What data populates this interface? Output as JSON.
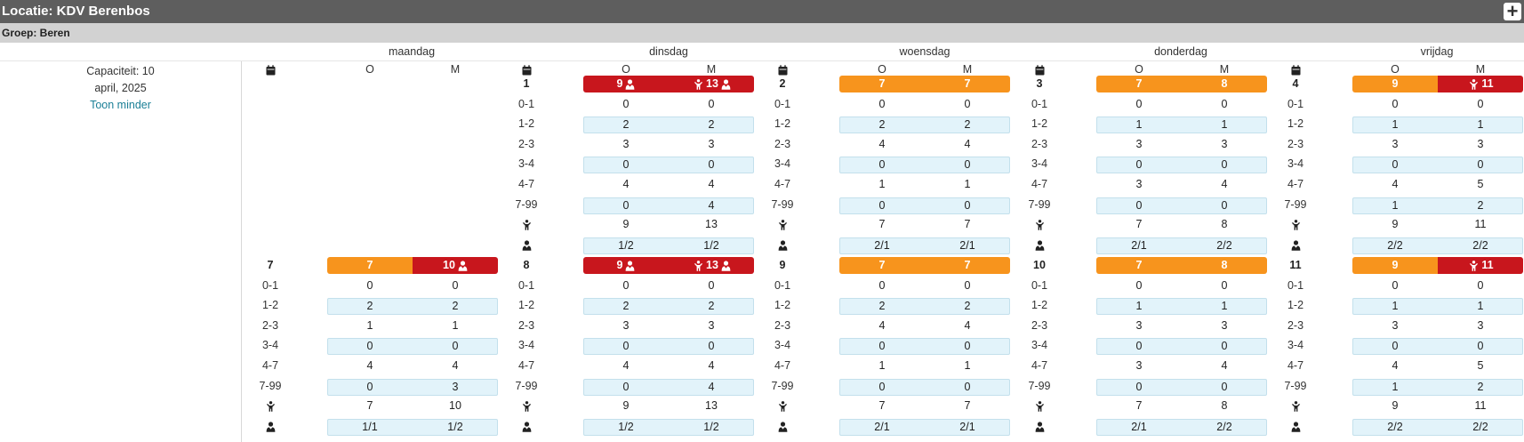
{
  "header": {
    "title": "Locatie: KDV Berenbos",
    "add_label": "+"
  },
  "group": {
    "title": "Groep: Beren"
  },
  "days": [
    "maandag",
    "dinsdag",
    "woensdag",
    "donderdag",
    "vrijdag"
  ],
  "info": {
    "capacity": "Capaciteit: 10",
    "month": "april, 2025",
    "toggle": "Toon minder"
  },
  "shift_labels": {
    "o": "O",
    "m": "M"
  },
  "age_rows": [
    "0-1",
    "1-2",
    "2-3",
    "3-4",
    "4-7",
    "7-99"
  ],
  "colors": {
    "orange": "#f7941d",
    "red": "#c8161d",
    "shade": "#e2f3fa",
    "link": "#1a7f96"
  },
  "weeks": [
    {
      "cells": [
        null,
        {
          "day": "1",
          "o": {
            "total": "9",
            "color": "red",
            "icons": [
              "staff"
            ]
          },
          "m": {
            "total": "13",
            "color": "red",
            "icons": [
              "child",
              "staff"
            ]
          },
          "ages": [
            [
              "0",
              "0"
            ],
            [
              "2",
              "2"
            ],
            [
              "3",
              "3"
            ],
            [
              "0",
              "0"
            ],
            [
              "4",
              "4"
            ],
            [
              "0",
              "4"
            ]
          ],
          "children": [
            "9",
            "13"
          ],
          "staff": [
            "1/2",
            "1/2"
          ]
        },
        {
          "day": "2",
          "o": {
            "total": "7",
            "color": "orange",
            "icons": []
          },
          "m": {
            "total": "7",
            "color": "orange",
            "icons": []
          },
          "ages": [
            [
              "0",
              "0"
            ],
            [
              "2",
              "2"
            ],
            [
              "4",
              "4"
            ],
            [
              "0",
              "0"
            ],
            [
              "1",
              "1"
            ],
            [
              "0",
              "0"
            ]
          ],
          "children": [
            "7",
            "7"
          ],
          "staff": [
            "2/1",
            "2/1"
          ]
        },
        {
          "day": "3",
          "o": {
            "total": "7",
            "color": "orange",
            "icons": []
          },
          "m": {
            "total": "8",
            "color": "orange",
            "icons": []
          },
          "ages": [
            [
              "0",
              "0"
            ],
            [
              "1",
              "1"
            ],
            [
              "3",
              "3"
            ],
            [
              "0",
              "0"
            ],
            [
              "3",
              "4"
            ],
            [
              "0",
              "0"
            ]
          ],
          "children": [
            "7",
            "8"
          ],
          "staff": [
            "2/1",
            "2/2"
          ]
        },
        {
          "day": "4",
          "o": {
            "total": "9",
            "color": "orange",
            "icons": []
          },
          "m": {
            "total": "11",
            "color": "red",
            "icons": [
              "child"
            ]
          },
          "ages": [
            [
              "0",
              "0"
            ],
            [
              "1",
              "1"
            ],
            [
              "3",
              "3"
            ],
            [
              "0",
              "0"
            ],
            [
              "4",
              "5"
            ],
            [
              "1",
              "2"
            ]
          ],
          "children": [
            "9",
            "11"
          ],
          "staff": [
            "2/2",
            "2/2"
          ]
        }
      ]
    },
    {
      "cells": [
        {
          "day": "7",
          "o": {
            "total": "7",
            "color": "orange",
            "icons": []
          },
          "m": {
            "total": "10",
            "color": "red",
            "icons": [
              "staff"
            ]
          },
          "ages": [
            [
              "0",
              "0"
            ],
            [
              "2",
              "2"
            ],
            [
              "1",
              "1"
            ],
            [
              "0",
              "0"
            ],
            [
              "4",
              "4"
            ],
            [
              "0",
              "3"
            ]
          ],
          "children": [
            "7",
            "10"
          ],
          "staff": [
            "1/1",
            "1/2"
          ]
        },
        {
          "day": "8",
          "o": {
            "total": "9",
            "color": "red",
            "icons": [
              "staff"
            ]
          },
          "m": {
            "total": "13",
            "color": "red",
            "icons": [
              "child",
              "staff"
            ]
          },
          "ages": [
            [
              "0",
              "0"
            ],
            [
              "2",
              "2"
            ],
            [
              "3",
              "3"
            ],
            [
              "0",
              "0"
            ],
            [
              "4",
              "4"
            ],
            [
              "0",
              "4"
            ]
          ],
          "children": [
            "9",
            "13"
          ],
          "staff": [
            "1/2",
            "1/2"
          ]
        },
        {
          "day": "9",
          "o": {
            "total": "7",
            "color": "orange",
            "icons": []
          },
          "m": {
            "total": "7",
            "color": "orange",
            "icons": []
          },
          "ages": [
            [
              "0",
              "0"
            ],
            [
              "2",
              "2"
            ],
            [
              "4",
              "4"
            ],
            [
              "0",
              "0"
            ],
            [
              "1",
              "1"
            ],
            [
              "0",
              "0"
            ]
          ],
          "children": [
            "7",
            "7"
          ],
          "staff": [
            "2/1",
            "2/1"
          ]
        },
        {
          "day": "10",
          "o": {
            "total": "7",
            "color": "orange",
            "icons": []
          },
          "m": {
            "total": "8",
            "color": "orange",
            "icons": []
          },
          "ages": [
            [
              "0",
              "0"
            ],
            [
              "1",
              "1"
            ],
            [
              "3",
              "3"
            ],
            [
              "0",
              "0"
            ],
            [
              "3",
              "4"
            ],
            [
              "0",
              "0"
            ]
          ],
          "children": [
            "7",
            "8"
          ],
          "staff": [
            "2/1",
            "2/2"
          ]
        },
        {
          "day": "11",
          "o": {
            "total": "9",
            "color": "orange",
            "icons": []
          },
          "m": {
            "total": "11",
            "color": "red",
            "icons": [
              "child"
            ]
          },
          "ages": [
            [
              "0",
              "0"
            ],
            [
              "1",
              "1"
            ],
            [
              "3",
              "3"
            ],
            [
              "0",
              "0"
            ],
            [
              "4",
              "5"
            ],
            [
              "1",
              "2"
            ]
          ],
          "children": [
            "9",
            "11"
          ],
          "staff": [
            "2/2",
            "2/2"
          ]
        }
      ]
    }
  ]
}
